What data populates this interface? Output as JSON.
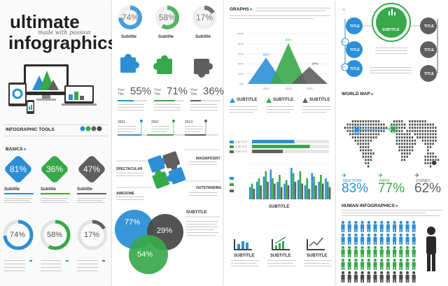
{
  "colors": {
    "blue": "#2c8fd6",
    "green": "#38a84a",
    "gray": "#5f5f5f",
    "darkgray": "#4a4a4a",
    "light": "#e6e6e6"
  },
  "left": {
    "title_line1": "ultimate",
    "script": "made with passion",
    "title_line2": "infographics",
    "tools_heading": "INFOGRAPHIC TOOLS",
    "basics_heading": "BASICS",
    "diamonds": [
      {
        "value": "81%",
        "color": "blue"
      },
      {
        "value": "36%",
        "color": "green"
      },
      {
        "value": "47%",
        "color": "gray"
      }
    ],
    "subtitles": [
      "Subtitle",
      "Subtitle",
      "Subtitle"
    ],
    "rings": [
      {
        "value": "74%",
        "fraction": 0.74,
        "color": "blue"
      },
      {
        "value": "58%",
        "fraction": 0.58,
        "color": "green"
      },
      {
        "value": "17%",
        "fraction": 0.17,
        "color": "gray"
      }
    ]
  },
  "p2": {
    "top_rings": [
      {
        "value": "74%",
        "fraction": 0.74,
        "color": "blue"
      },
      {
        "value": "58%",
        "fraction": 0.58,
        "color": "green"
      },
      {
        "value": "17%",
        "fraction": 0.17,
        "color": "gray"
      }
    ],
    "subtitles": [
      "Subtitle",
      "Subtitle",
      "Subtitle"
    ],
    "title_pcts": [
      {
        "label": "Your Title",
        "value": "55%",
        "fraction": 0.55,
        "color": "blue"
      },
      {
        "label": "Your Title",
        "value": "71%",
        "fraction": 0.71,
        "color": "green"
      },
      {
        "label": "Your Title",
        "value": "36%",
        "fraction": 0.36,
        "color": "gray"
      }
    ],
    "years": [
      "2001",
      "2007",
      "2013"
    ],
    "labels": {
      "spectacular": "SPECTACULAR",
      "magnificent": "MAGNIFICENT",
      "awesome": "AWESOME",
      "outstanding": "OUTSTANDING"
    },
    "venn": [
      {
        "value": "77%",
        "color": "blue"
      },
      {
        "value": "29%",
        "color": "darkgray"
      },
      {
        "value": "54%",
        "color": "green"
      }
    ],
    "venn_subtitle": "SUBTITLE"
  },
  "p3": {
    "graphs_heading": "GRAPHS",
    "yticks": [
      "100%",
      "80%",
      "60%",
      "40%",
      "20%",
      "0%"
    ],
    "peaks": [
      {
        "label": "52%",
        "value": 52,
        "year": "2011",
        "color": "blue"
      },
      {
        "label": "81%",
        "value": 81,
        "year": "2012",
        "color": "green"
      },
      {
        "label": "34%",
        "value": 34,
        "year": "2013",
        "color": "gray"
      }
    ],
    "subtitles": [
      "SUBTITLE",
      "SUBTITLE",
      "SUBTITLE"
    ],
    "hbars": [
      {
        "name": "SUBTITLE",
        "value": 0.55,
        "color": "blue"
      },
      {
        "name": "SUBTITLE",
        "value": 0.75,
        "color": "green"
      },
      {
        "name": "SUBTITLE",
        "value": 0.4,
        "color": "gray"
      }
    ],
    "vbars_series": [
      {
        "color": "blue",
        "values": [
          0.35,
          0.5,
          0.65,
          0.85,
          0.5,
          0.45,
          0.9,
          0.55,
          0.4,
          0.75,
          0.5,
          0.6
        ]
      },
      {
        "color": "green",
        "values": [
          0.45,
          0.6,
          0.8,
          0.6,
          0.7,
          0.55,
          0.75,
          0.8,
          0.6,
          0.65,
          0.7,
          0.5
        ]
      },
      {
        "color": "gray",
        "values": [
          0.3,
          0.4,
          0.5,
          0.45,
          0.35,
          0.4,
          0.5,
          0.45,
          0.3,
          0.4,
          0.45,
          0.35
        ]
      }
    ],
    "vbars_subtitle": "SUBTITLE",
    "icon_subtitles": [
      "SUBTITLE",
      "SUBTITLE",
      "SUBTITLE"
    ]
  },
  "p4": {
    "circle_center": "SUBTITLE",
    "titles": [
      "TITLE",
      "TITLE",
      "TITLE",
      "TITLE",
      "TITLE",
      "TITLE"
    ],
    "nums": [
      "01",
      "02",
      "03"
    ],
    "world_heading": "WORLD MAP",
    "cities": [
      {
        "name": "NEW YORK",
        "value": "83%"
      },
      {
        "name": "PARIS",
        "value": "77%"
      },
      {
        "name": "SYDNEY",
        "value": "62%"
      }
    ],
    "human_heading": "HUMAN INFOGRAPHICS"
  }
}
